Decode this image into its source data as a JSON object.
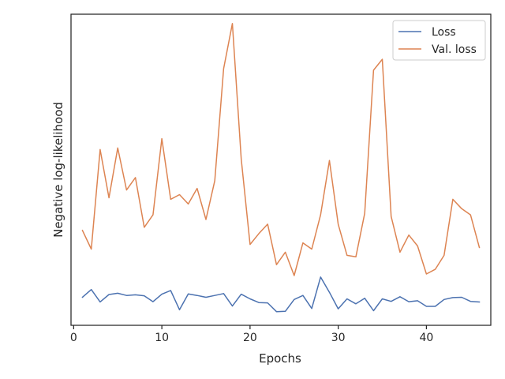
{
  "chart_data": {
    "type": "line",
    "title": "",
    "xlabel": "Epochs",
    "ylabel": "Negative log-likelihood",
    "xlim": [
      -0.3,
      47.3
    ],
    "ylim": [
      0,
      10
    ],
    "x_ticks": [
      0,
      10,
      20,
      30,
      40
    ],
    "x_tick_labels": [
      "0",
      "10",
      "20",
      "30",
      "40"
    ],
    "y_ticks_visible": false,
    "grid": false,
    "legend": {
      "placement": "top-right"
    },
    "x": [
      1,
      2,
      3,
      4,
      5,
      6,
      7,
      8,
      9,
      10,
      11,
      12,
      13,
      14,
      15,
      16,
      17,
      18,
      19,
      20,
      21,
      22,
      23,
      24,
      25,
      26,
      27,
      28,
      29,
      30,
      31,
      32,
      33,
      34,
      35,
      36,
      37,
      38,
      39,
      40,
      41,
      42,
      43,
      44,
      45,
      46
    ],
    "series": [
      {
        "name": "Loss",
        "color": "#4c72b0",
        "values": [
          0.9,
          1.15,
          0.75,
          0.99,
          1.03,
          0.96,
          0.98,
          0.95,
          0.76,
          1.0,
          1.12,
          0.5,
          1.01,
          0.96,
          0.9,
          0.96,
          1.02,
          0.62,
          1.0,
          0.85,
          0.73,
          0.72,
          0.44,
          0.45,
          0.83,
          0.96,
          0.54,
          1.55,
          1.06,
          0.53,
          0.85,
          0.69,
          0.87,
          0.47,
          0.85,
          0.77,
          0.92,
          0.76,
          0.79,
          0.61,
          0.61,
          0.83,
          0.89,
          0.9,
          0.77,
          0.75
        ]
      },
      {
        "name": "Val. loss",
        "color": "#dd8452",
        "values": [
          3.05,
          2.45,
          5.65,
          4.1,
          5.7,
          4.35,
          4.75,
          3.15,
          3.55,
          6.0,
          4.05,
          4.2,
          3.9,
          4.4,
          3.4,
          4.65,
          8.25,
          9.7,
          5.35,
          2.6,
          2.95,
          3.25,
          1.95,
          2.35,
          1.6,
          2.65,
          2.45,
          3.55,
          5.3,
          3.25,
          2.25,
          2.2,
          3.6,
          8.2,
          8.55,
          3.5,
          2.35,
          2.9,
          2.55,
          1.65,
          1.8,
          2.25,
          4.05,
          3.75,
          3.55,
          2.5
        ]
      }
    ]
  }
}
